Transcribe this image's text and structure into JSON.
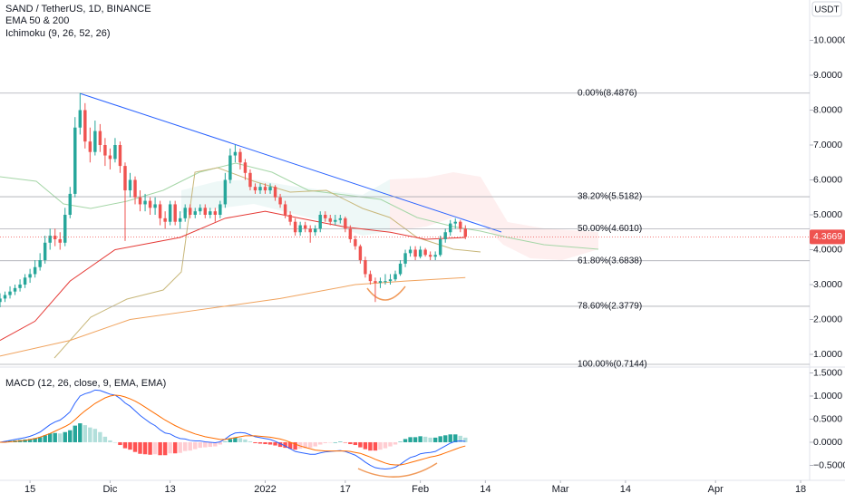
{
  "chart_data": {
    "type": "candlestick",
    "title": "SAND / TetherUS, 1D, BINANCE",
    "indicators": [
      "EMA 50 & 200",
      "Ichimoku (9, 26, 52, 26)"
    ],
    "currency": "USDT",
    "up_color": "#26a69a",
    "down_color": "#ef5350",
    "xlim": [
      -6,
      155.8
    ],
    "xticks": [
      {
        "value": 0,
        "label": "15"
      },
      {
        "value": 16,
        "label": "Dic"
      },
      {
        "value": 28,
        "label": "13"
      },
      {
        "value": 47,
        "label": "2022"
      },
      {
        "value": 63,
        "label": "17"
      },
      {
        "value": 78,
        "label": "Feb"
      },
      {
        "value": 91,
        "label": "14"
      },
      {
        "value": 106,
        "label": "Mar"
      },
      {
        "value": 119,
        "label": "14"
      },
      {
        "value": 137,
        "label": "Apr"
      },
      {
        "value": 154,
        "label": "18"
      }
    ],
    "ylim": [
      0.636,
      11.156
    ],
    "yticks": [
      {
        "value": 10,
        "label": "10.0000"
      },
      {
        "value": 9,
        "label": "9.0000"
      },
      {
        "value": 8,
        "label": "8.0000"
      },
      {
        "value": 7,
        "label": "7.0000"
      },
      {
        "value": 6,
        "label": "6.0000"
      },
      {
        "value": 5,
        "label": "5.0000"
      },
      {
        "value": 4,
        "label": "4.0000"
      },
      {
        "value": 3,
        "label": "3.0000"
      },
      {
        "value": 2,
        "label": "2.0000"
      },
      {
        "value": 1,
        "label": "1.0000"
      }
    ],
    "last_price": 4.3669,
    "fib_levels": [
      {
        "value": 8.4876,
        "label": "0.00%(8.4876)"
      },
      {
        "value": 5.5182,
        "label": "38.20%(5.5182)"
      },
      {
        "value": 4.601,
        "label": "50.00%(4.6010)"
      },
      {
        "value": 3.6838,
        "label": "61.80%(3.6838)"
      },
      {
        "value": 2.3779,
        "label": "78.60%(2.3779)"
      },
      {
        "value": 0.7144,
        "label": "100.00%(0.7144)"
      }
    ],
    "candles": [
      [
        -6,
        2.5,
        2.75,
        2.35,
        2.6
      ],
      [
        -5,
        2.6,
        2.8,
        2.5,
        2.7
      ],
      [
        -4,
        2.7,
        2.95,
        2.6,
        2.8
      ],
      [
        -3,
        2.8,
        3.0,
        2.7,
        2.9
      ],
      [
        -2,
        2.9,
        3.15,
        2.8,
        3.0
      ],
      [
        -1,
        3.0,
        3.3,
        2.9,
        3.2
      ],
      [
        0,
        3.2,
        3.45,
        3.05,
        3.3
      ],
      [
        1,
        3.3,
        3.7,
        3.2,
        3.5
      ],
      [
        2,
        3.5,
        3.9,
        3.4,
        3.7
      ],
      [
        3,
        3.7,
        4.4,
        3.6,
        4.2
      ],
      [
        4,
        4.2,
        4.6,
        4.0,
        4.4
      ],
      [
        5,
        4.4,
        4.6,
        4.1,
        4.3
      ],
      [
        6,
        4.3,
        4.5,
        4.0,
        4.2
      ],
      [
        7,
        4.2,
        5.2,
        4.1,
        5.0
      ],
      [
        8,
        5.0,
        5.8,
        4.9,
        5.6
      ],
      [
        9,
        5.6,
        7.8,
        5.5,
        7.5
      ],
      [
        10,
        7.5,
        8.49,
        7.3,
        8.0
      ],
      [
        11,
        8.0,
        8.2,
        6.9,
        7.1
      ],
      [
        12,
        7.1,
        7.5,
        6.5,
        6.8
      ],
      [
        13,
        6.8,
        7.7,
        6.7,
        7.4
      ],
      [
        14,
        7.4,
        7.6,
        6.8,
        7.0
      ],
      [
        15,
        7.0,
        7.2,
        6.4,
        6.7
      ],
      [
        16,
        6.7,
        6.9,
        6.3,
        6.6
      ],
      [
        17,
        6.6,
        7.2,
        6.5,
        7.0
      ],
      [
        18,
        7.0,
        7.1,
        6.2,
        6.4
      ],
      [
        19,
        6.4,
        6.5,
        4.25,
        5.7
      ],
      [
        20,
        5.7,
        6.2,
        5.5,
        6.0
      ],
      [
        21,
        6.0,
        6.1,
        5.3,
        5.5
      ],
      [
        22,
        5.5,
        5.7,
        5.1,
        5.3
      ],
      [
        23,
        5.3,
        5.6,
        5.1,
        5.4
      ],
      [
        24,
        5.4,
        5.5,
        5.0,
        5.2
      ],
      [
        25,
        5.2,
        5.5,
        5.0,
        5.3
      ],
      [
        26,
        5.3,
        5.4,
        4.7,
        4.9
      ],
      [
        27,
        4.9,
        5.1,
        4.6,
        4.8
      ],
      [
        28,
        4.8,
        5.4,
        4.7,
        5.3
      ],
      [
        29,
        5.3,
        5.4,
        4.7,
        4.8
      ],
      [
        30,
        4.8,
        5.1,
        4.6,
        4.9
      ],
      [
        31,
        4.9,
        5.3,
        4.8,
        5.2
      ],
      [
        32,
        5.2,
        5.3,
        4.9,
        5.0
      ],
      [
        33,
        5.0,
        5.2,
        4.9,
        5.1
      ],
      [
        34,
        5.1,
        5.3,
        5.0,
        5.2
      ],
      [
        35,
        5.2,
        5.3,
        4.9,
        5.0
      ],
      [
        36,
        5.0,
        5.2,
        4.9,
        5.1
      ],
      [
        37,
        5.1,
        5.2,
        4.8,
        5.0
      ],
      [
        38,
        5.0,
        5.4,
        4.9,
        5.3
      ],
      [
        39,
        5.3,
        6.2,
        5.2,
        6.0
      ],
      [
        40,
        6.0,
        6.9,
        5.9,
        6.7
      ],
      [
        41,
        6.7,
        7.0,
        6.5,
        6.8
      ],
      [
        42,
        6.8,
        6.9,
        6.3,
        6.5
      ],
      [
        43,
        6.5,
        6.6,
        6.0,
        6.2
      ],
      [
        44,
        6.2,
        6.3,
        5.7,
        5.8
      ],
      [
        45,
        5.8,
        5.9,
        5.6,
        5.7
      ],
      [
        46,
        5.7,
        5.9,
        5.6,
        5.8
      ],
      [
        47,
        5.8,
        5.9,
        5.6,
        5.7
      ],
      [
        48,
        5.7,
        5.9,
        5.6,
        5.8
      ],
      [
        49,
        5.8,
        5.85,
        5.4,
        5.5
      ],
      [
        50,
        5.5,
        5.6,
        5.2,
        5.3
      ],
      [
        51,
        5.3,
        5.4,
        4.9,
        5.0
      ],
      [
        52,
        5.0,
        5.1,
        4.7,
        4.8
      ],
      [
        53,
        4.8,
        4.9,
        4.4,
        4.5
      ],
      [
        54,
        4.5,
        4.8,
        4.4,
        4.7
      ],
      [
        55,
        4.7,
        4.8,
        4.5,
        4.6
      ],
      [
        56,
        4.6,
        4.7,
        4.2,
        4.5
      ],
      [
        57,
        4.5,
        4.7,
        4.4,
        4.6
      ],
      [
        58,
        4.6,
        5.1,
        4.5,
        5.0
      ],
      [
        59,
        5.0,
        5.1,
        4.8,
        4.9
      ],
      [
        60,
        4.9,
        5.0,
        4.7,
        4.8
      ],
      [
        61,
        4.8,
        5.0,
        4.7,
        4.85
      ],
      [
        62,
        4.85,
        5.0,
        4.75,
        4.9
      ],
      [
        63,
        4.9,
        4.95,
        4.5,
        4.6
      ],
      [
        64,
        4.6,
        4.7,
        4.2,
        4.3
      ],
      [
        65,
        4.3,
        4.4,
        4.0,
        4.1
      ],
      [
        66,
        4.1,
        4.15,
        3.6,
        3.7
      ],
      [
        67,
        3.7,
        3.8,
        3.2,
        3.3
      ],
      [
        68,
        3.3,
        3.4,
        3.0,
        3.1
      ],
      [
        69,
        3.1,
        3.2,
        2.5,
        3.05
      ],
      [
        70,
        3.05,
        3.2,
        2.9,
        3.1
      ],
      [
        71,
        3.1,
        3.3,
        3.0,
        3.1
      ],
      [
        72,
        3.1,
        3.3,
        3.0,
        3.15
      ],
      [
        73,
        3.15,
        3.4,
        3.1,
        3.3
      ],
      [
        74,
        3.3,
        3.7,
        3.25,
        3.6
      ],
      [
        75,
        3.6,
        4.0,
        3.5,
        3.9
      ],
      [
        76,
        3.9,
        4.1,
        3.8,
        4.0
      ],
      [
        77,
        4.0,
        4.1,
        3.7,
        3.8
      ],
      [
        78,
        3.8,
        4.1,
        3.75,
        4.0
      ],
      [
        79,
        4.0,
        4.05,
        3.8,
        3.85
      ],
      [
        80,
        3.85,
        3.95,
        3.7,
        3.8
      ],
      [
        81,
        3.8,
        3.95,
        3.7,
        3.85
      ],
      [
        82,
        3.85,
        4.4,
        3.8,
        4.3
      ],
      [
        83,
        4.3,
        4.6,
        4.2,
        4.5
      ],
      [
        84,
        4.5,
        4.85,
        4.4,
        4.75
      ],
      [
        85,
        4.75,
        4.9,
        4.6,
        4.8
      ],
      [
        86,
        4.8,
        4.85,
        4.5,
        4.6
      ],
      [
        87,
        4.6,
        4.7,
        4.3,
        4.3669
      ]
    ],
    "ema": [
      {
        "color": "#e53935",
        "x": [
          -6,
          1,
          8,
          17,
          30,
          39,
          47,
          54,
          63,
          72,
          79,
          87
        ],
        "values": [
          1.4,
          1.95,
          3.1,
          4.0,
          4.35,
          4.9,
          5.1,
          4.9,
          4.65,
          4.5,
          4.3,
          4.35
        ]
      },
      {
        "color": "#f0a35e",
        "x": [
          -6,
          8,
          20,
          35,
          50,
          65,
          75,
          87
        ],
        "values": [
          0.95,
          1.4,
          2.0,
          2.3,
          2.6,
          3.0,
          3.1,
          3.2
        ]
      }
    ],
    "macd": {
      "type": "macd",
      "title": "MACD (12, 26, close, 9, EMA, EMA)",
      "ylim": [
        -0.824,
        1.627
      ],
      "yticks": [
        {
          "value": 1.5,
          "label": "1.5000"
        },
        {
          "value": 1.0,
          "label": "1.0000"
        },
        {
          "value": 0.5,
          "label": "0.5000"
        },
        {
          "value": 0,
          "label": "0.0000"
        },
        {
          "value": -0.5,
          "label": "−0.5000"
        }
      ],
      "macd_color": "#2962ff",
      "signal_color": "#ff6d00",
      "macd": [
        0.0,
        0.02,
        0.04,
        0.06,
        0.08,
        0.1,
        0.13,
        0.17,
        0.22,
        0.3,
        0.38,
        0.44,
        0.48,
        0.56,
        0.66,
        0.85,
        1.0,
        1.05,
        1.08,
        1.13,
        1.12,
        1.08,
        1.04,
        1.02,
        0.95,
        0.85,
        0.78,
        0.68,
        0.58,
        0.5,
        0.42,
        0.36,
        0.27,
        0.2,
        0.18,
        0.12,
        0.08,
        0.07,
        0.04,
        0.03,
        0.03,
        0.01,
        0.0,
        -0.01,
        0.01,
        0.07,
        0.15,
        0.2,
        0.21,
        0.2,
        0.16,
        0.12,
        0.1,
        0.08,
        0.06,
        0.02,
        -0.03,
        -0.08,
        -0.14,
        -0.2,
        -0.22,
        -0.24,
        -0.26,
        -0.26,
        -0.23,
        -0.21,
        -0.2,
        -0.19,
        -0.18,
        -0.2,
        -0.24,
        -0.28,
        -0.35,
        -0.43,
        -0.5,
        -0.55,
        -0.57,
        -0.58,
        -0.57,
        -0.54,
        -0.48,
        -0.4,
        -0.33,
        -0.3,
        -0.25,
        -0.23,
        -0.22,
        -0.2,
        -0.14,
        -0.08,
        -0.02,
        0.02,
        0.03,
        0.02
      ],
      "signal": [
        0.0,
        0.0,
        0.01,
        0.02,
        0.03,
        0.04,
        0.06,
        0.08,
        0.11,
        0.15,
        0.19,
        0.24,
        0.29,
        0.34,
        0.4,
        0.49,
        0.59,
        0.68,
        0.76,
        0.84,
        0.9,
        0.96,
        1.0,
        1.02,
        1.01,
        0.98,
        0.94,
        0.89,
        0.83,
        0.76,
        0.69,
        0.62,
        0.55,
        0.48,
        0.42,
        0.36,
        0.31,
        0.26,
        0.22,
        0.18,
        0.15,
        0.12,
        0.1,
        0.08,
        0.06,
        0.06,
        0.08,
        0.1,
        0.12,
        0.14,
        0.14,
        0.14,
        0.13,
        0.12,
        0.11,
        0.09,
        0.07,
        0.04,
        0.0,
        -0.04,
        -0.08,
        -0.11,
        -0.14,
        -0.17,
        -0.18,
        -0.19,
        -0.19,
        -0.19,
        -0.19,
        -0.19,
        -0.2,
        -0.22,
        -0.24,
        -0.28,
        -0.32,
        -0.37,
        -0.41,
        -0.45,
        -0.48,
        -0.49,
        -0.49,
        -0.47,
        -0.44,
        -0.41,
        -0.38,
        -0.35,
        -0.32,
        -0.3,
        -0.27,
        -0.23,
        -0.19,
        -0.15,
        -0.11,
        -0.08
      ],
      "histogram": [
        0,
        0.02,
        0.03,
        0.04,
        0.05,
        0.06,
        0.07,
        0.09,
        0.11,
        0.15,
        0.19,
        0.2,
        0.19,
        0.22,
        0.26,
        0.36,
        0.41,
        0.37,
        0.32,
        0.29,
        0.22,
        0.12,
        0.04,
        0.0,
        -0.06,
        -0.13,
        -0.16,
        -0.21,
        -0.25,
        -0.26,
        -0.27,
        -0.26,
        -0.28,
        -0.28,
        -0.24,
        -0.24,
        -0.23,
        -0.19,
        -0.18,
        -0.15,
        -0.12,
        -0.11,
        -0.1,
        -0.09,
        -0.05,
        0.01,
        0.07,
        0.1,
        0.09,
        0.06,
        0.02,
        -0.02,
        -0.03,
        -0.04,
        -0.05,
        -0.07,
        -0.1,
        -0.12,
        -0.14,
        -0.16,
        -0.14,
        -0.13,
        -0.12,
        -0.09,
        -0.05,
        -0.02,
        -0.01,
        0.0,
        0.01,
        -0.01,
        -0.04,
        -0.06,
        -0.11,
        -0.15,
        -0.18,
        -0.18,
        -0.16,
        -0.13,
        -0.09,
        -0.05,
        0.01,
        0.07,
        0.11,
        0.11,
        0.13,
        0.12,
        0.1,
        0.1,
        0.13,
        0.15,
        0.17,
        0.17,
        0.14,
        0.1
      ]
    }
  }
}
